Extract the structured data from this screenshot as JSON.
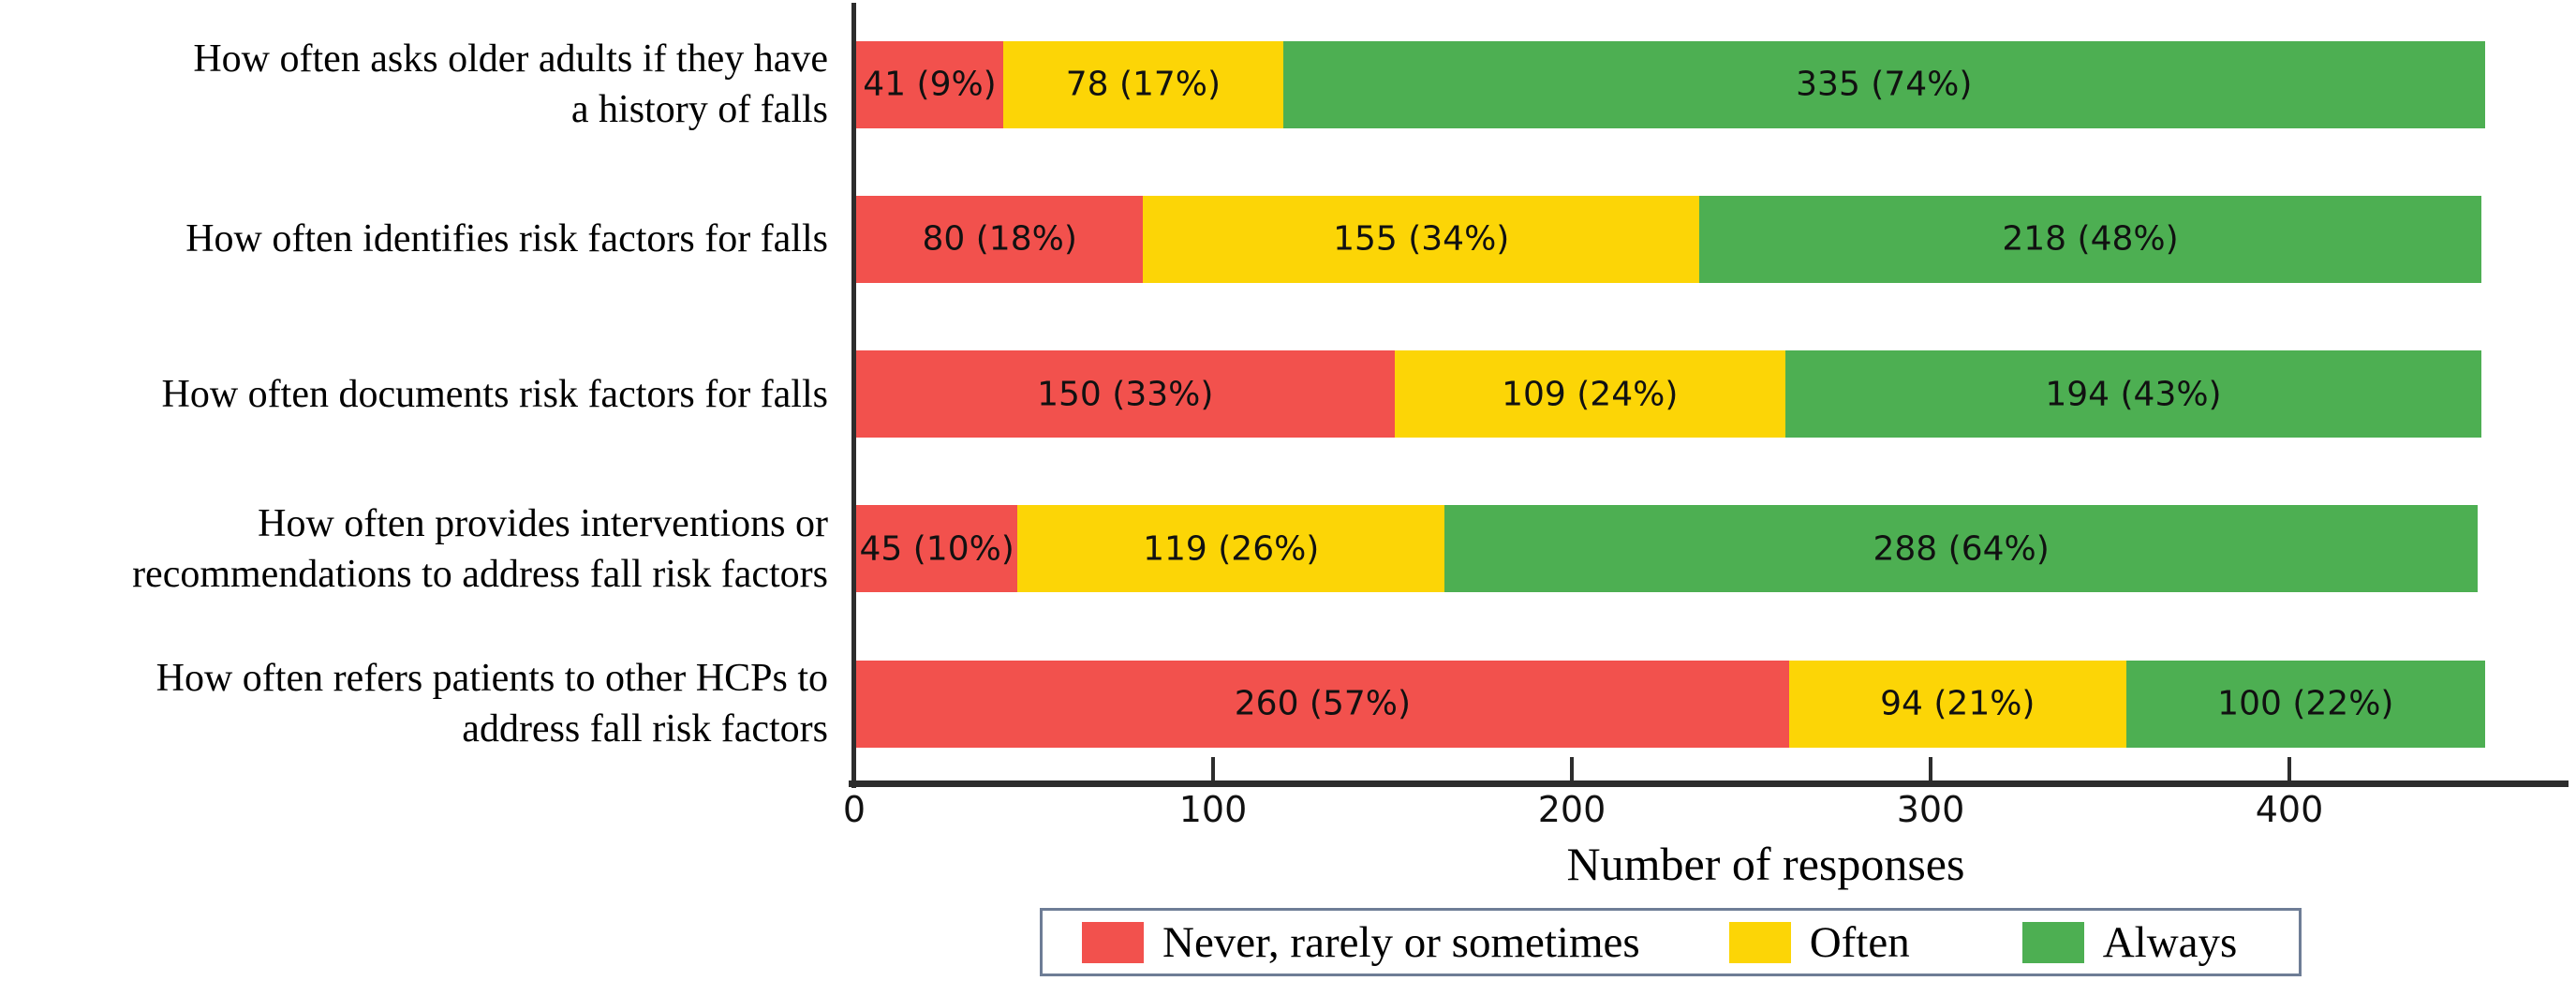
{
  "chart_data": {
    "type": "bar",
    "orientation": "horizontal",
    "stacked": true,
    "title": "",
    "xlabel": "Number of responses",
    "ylabel": "",
    "xlim": [
      0,
      477
    ],
    "x_ticks": [
      0,
      100,
      200,
      300,
      400
    ],
    "grid": false,
    "legend_position": "bottom",
    "categories": [
      "How often asks older adults if they have a history of falls",
      "How often identifies risk factors for falls",
      "How often documents risk factors for falls",
      "How often provides interventions or recommendations to address fall risk factors",
      "How often refers patients to other HCPs to address fall risk factors"
    ],
    "category_label_lines": [
      [
        "How often asks older adults if they have",
        "a history of falls"
      ],
      [
        "How often identifies risk factors for falls"
      ],
      [
        "How often documents risk factors for falls"
      ],
      [
        "How often provides interventions or",
        "recommendations to address fall risk factors"
      ],
      [
        "How often refers patients to other HCPs to",
        "address fall risk factors"
      ]
    ],
    "series": [
      {
        "name": "Never, rarely or sometimes",
        "color": "#F2514D",
        "values": [
          41,
          80,
          150,
          45,
          260
        ],
        "labels": [
          "41 (9%)",
          "80 (18%)",
          "150 (33%)",
          "45 (10%)",
          "260 (57%)"
        ]
      },
      {
        "name": "Often",
        "color": "#FCD506",
        "values": [
          78,
          155,
          109,
          119,
          94
        ],
        "labels": [
          "78 (17%)",
          "155 (34%)",
          "109 (24%)",
          "119 (26%)",
          "94 (21%)"
        ]
      },
      {
        "name": "Always",
        "color": "#4DAF52",
        "values": [
          335,
          218,
          194,
          288,
          100
        ],
        "labels": [
          "335 (74%)",
          "218 (48%)",
          "194 (43%)",
          "288 (64%)",
          "100 (22%)"
        ]
      }
    ],
    "colors": {
      "axis": "#2d2d2d",
      "text": "#000000",
      "bar_label_text": "#111111",
      "legend_border": "#6e7d96",
      "background": "#ffffff"
    }
  }
}
